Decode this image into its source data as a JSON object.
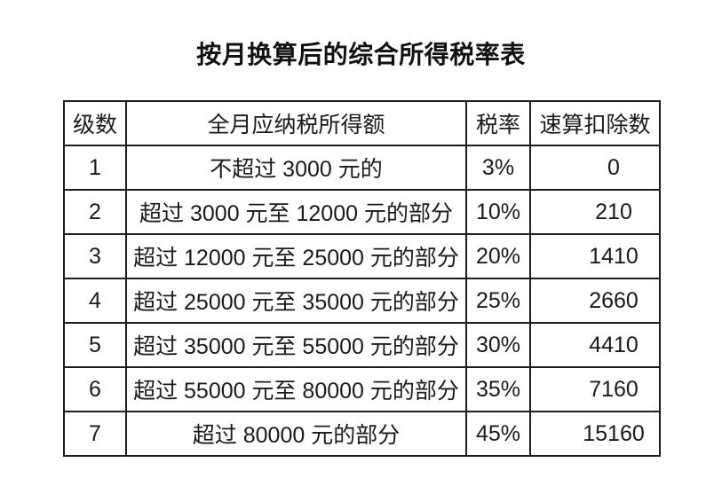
{
  "title": "按月换算后的综合所得税率表",
  "table": {
    "headers": [
      "级数",
      "全月应纳税所得额",
      "税率",
      "速算扣除数"
    ],
    "rows": [
      {
        "level": "1",
        "income": "不超过 3000 元的",
        "rate": "3%",
        "deduction": "0"
      },
      {
        "level": "2",
        "income": "超过 3000 元至 12000 元的部分",
        "rate": "10%",
        "deduction": "210"
      },
      {
        "level": "3",
        "income": "超过 12000 元至 25000 元的部分",
        "rate": "20%",
        "deduction": "1410"
      },
      {
        "level": "4",
        "income": "超过 25000 元至 35000 元的部分",
        "rate": "25%",
        "deduction": "2660"
      },
      {
        "level": "5",
        "income": "超过 35000 元至 55000 元的部分",
        "rate": "30%",
        "deduction": "4410"
      },
      {
        "level": "6",
        "income": "超过 55000 元至 80000 元的部分",
        "rate": "35%",
        "deduction": "7160"
      },
      {
        "level": "7",
        "income": "超过 80000 元的部分",
        "rate": "45%",
        "deduction": "15160"
      }
    ]
  },
  "colors": {
    "background": "#ffffff",
    "border": "#1c1c1c",
    "text": "#1a1a1a"
  }
}
